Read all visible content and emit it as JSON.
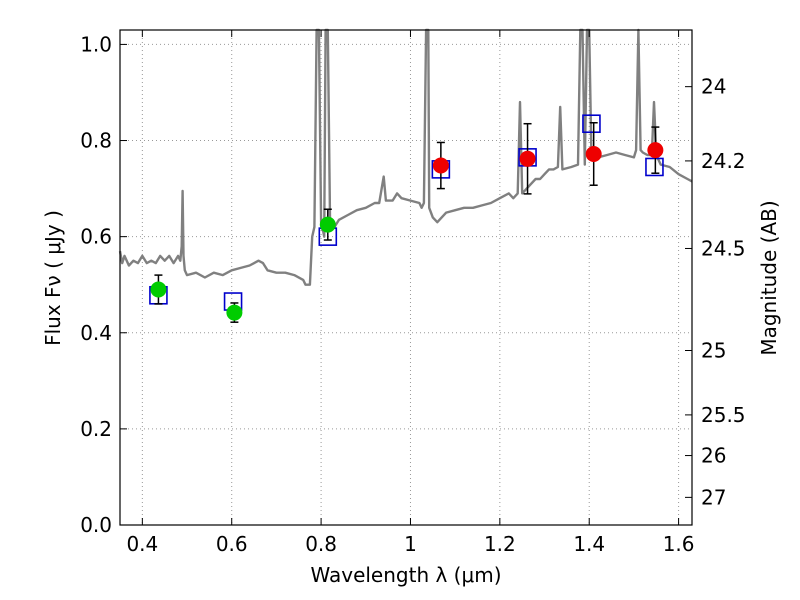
{
  "chart_data": {
    "type": "line",
    "xlabel": "Wavelength  λ (μm)",
    "ylabel": "Flux  Fν  ( μJy )",
    "ylabel_right": "Magnitude (AB)",
    "xlim": [
      0.35,
      1.63
    ],
    "ylim": [
      0.0,
      1.03
    ],
    "grid": true,
    "x_ticks": [
      0.4,
      0.6,
      0.8,
      1.0,
      1.2,
      1.4,
      1.6
    ],
    "x_tick_labels": [
      "0.4",
      "0.6",
      "0.8",
      "1",
      "1.2",
      "1.4",
      "1.6"
    ],
    "y_ticks": [
      0.0,
      0.2,
      0.4,
      0.6,
      0.8,
      1.0
    ],
    "y_tick_labels": [
      "0.0",
      "0.2",
      "0.4",
      "0.6",
      "0.8",
      "1.0"
    ],
    "right_ticks": [
      {
        "flux": 0.9121,
        "label": "24"
      },
      {
        "flux": 0.7576,
        "label": "24.2"
      },
      {
        "flux": 0.5754,
        "label": "24.5"
      },
      {
        "flux": 0.3631,
        "label": "25"
      },
      {
        "flux": 0.2291,
        "label": "25.5"
      },
      {
        "flux": 0.1445,
        "label": "26"
      },
      {
        "flux": 0.0575,
        "label": "27"
      }
    ],
    "colors": {
      "sed": "#808080",
      "model_box": "#0000cc",
      "green": "#00cc00",
      "red": "#ee0000",
      "errorbar": "#000000",
      "grid": "#999999"
    },
    "series": [
      {
        "kind": "line",
        "points": [
          [
            0.35,
            0.57
          ],
          [
            0.355,
            0.545
          ],
          [
            0.36,
            0.56
          ],
          [
            0.37,
            0.54
          ],
          [
            0.38,
            0.55
          ],
          [
            0.39,
            0.545
          ],
          [
            0.4,
            0.56
          ],
          [
            0.41,
            0.545
          ],
          [
            0.42,
            0.55
          ],
          [
            0.43,
            0.545
          ],
          [
            0.44,
            0.56
          ],
          [
            0.45,
            0.55
          ],
          [
            0.46,
            0.56
          ],
          [
            0.47,
            0.545
          ],
          [
            0.48,
            0.56
          ],
          [
            0.485,
            0.55
          ],
          [
            0.488,
            0.58
          ],
          [
            0.49,
            0.695
          ],
          [
            0.492,
            0.56
          ],
          [
            0.495,
            0.53
          ],
          [
            0.5,
            0.52
          ],
          [
            0.52,
            0.525
          ],
          [
            0.54,
            0.515
          ],
          [
            0.56,
            0.525
          ],
          [
            0.58,
            0.52
          ],
          [
            0.6,
            0.53
          ],
          [
            0.62,
            0.535
          ],
          [
            0.64,
            0.54
          ],
          [
            0.66,
            0.55
          ],
          [
            0.67,
            0.545
          ],
          [
            0.68,
            0.53
          ],
          [
            0.7,
            0.525
          ],
          [
            0.72,
            0.525
          ],
          [
            0.74,
            0.52
          ],
          [
            0.76,
            0.51
          ],
          [
            0.765,
            0.5
          ],
          [
            0.775,
            0.5
          ],
          [
            0.78,
            0.6
          ],
          [
            0.785,
            0.62
          ],
          [
            0.79,
            1.03
          ],
          [
            0.795,
            1.03
          ],
          [
            0.8,
            0.63
          ],
          [
            0.803,
            0.615
          ],
          [
            0.805,
            0.61
          ],
          [
            0.807,
            0.6
          ],
          [
            0.81,
            1.03
          ],
          [
            0.815,
            1.03
          ],
          [
            0.82,
            0.64
          ],
          [
            0.83,
            0.62
          ],
          [
            0.84,
            0.635
          ],
          [
            0.86,
            0.645
          ],
          [
            0.88,
            0.655
          ],
          [
            0.9,
            0.66
          ],
          [
            0.92,
            0.67
          ],
          [
            0.93,
            0.67
          ],
          [
            0.94,
            0.725
          ],
          [
            0.945,
            0.675
          ],
          [
            0.96,
            0.675
          ],
          [
            0.97,
            0.69
          ],
          [
            0.98,
            0.68
          ],
          [
            1.0,
            0.675
          ],
          [
            1.02,
            0.67
          ],
          [
            1.025,
            0.66
          ],
          [
            1.03,
            0.67
          ],
          [
            1.035,
            1.03
          ],
          [
            1.04,
            1.03
          ],
          [
            1.042,
            0.66
          ],
          [
            1.05,
            0.64
          ],
          [
            1.06,
            0.63
          ],
          [
            1.08,
            0.65
          ],
          [
            1.1,
            0.655
          ],
          [
            1.12,
            0.66
          ],
          [
            1.14,
            0.66
          ],
          [
            1.16,
            0.665
          ],
          [
            1.18,
            0.67
          ],
          [
            1.2,
            0.68
          ],
          [
            1.22,
            0.69
          ],
          [
            1.23,
            0.68
          ],
          [
            1.24,
            0.69
          ],
          [
            1.245,
            0.88
          ],
          [
            1.25,
            0.69
          ],
          [
            1.26,
            0.7
          ],
          [
            1.27,
            0.71
          ],
          [
            1.28,
            0.72
          ],
          [
            1.29,
            0.72
          ],
          [
            1.3,
            0.73
          ],
          [
            1.31,
            0.74
          ],
          [
            1.32,
            0.74
          ],
          [
            1.33,
            0.745
          ],
          [
            1.335,
            0.87
          ],
          [
            1.34,
            0.74
          ],
          [
            1.36,
            0.745
          ],
          [
            1.375,
            0.75
          ],
          [
            1.38,
            1.03
          ],
          [
            1.385,
            1.03
          ],
          [
            1.39,
            0.75
          ],
          [
            1.395,
            1.03
          ],
          [
            1.4,
            1.03
          ],
          [
            1.405,
            0.76
          ],
          [
            1.42,
            0.765
          ],
          [
            1.44,
            0.77
          ],
          [
            1.46,
            0.775
          ],
          [
            1.48,
            0.77
          ],
          [
            1.5,
            0.765
          ],
          [
            1.505,
            0.78
          ],
          [
            1.51,
            1.03
          ],
          [
            1.515,
            0.78
          ],
          [
            1.52,
            0.775
          ],
          [
            1.53,
            0.77
          ],
          [
            1.54,
            0.77
          ],
          [
            1.545,
            0.88
          ],
          [
            1.55,
            0.77
          ],
          [
            1.56,
            0.75
          ],
          [
            1.58,
            0.745
          ],
          [
            1.6,
            0.73
          ],
          [
            1.62,
            0.72
          ],
          [
            1.63,
            0.715
          ]
        ]
      },
      {
        "kind": "model_box",
        "x": [
          0.436,
          0.603,
          0.815,
          1.068,
          1.262,
          1.405,
          1.546
        ],
        "y": [
          0.478,
          0.465,
          0.6,
          0.74,
          0.765,
          0.835,
          0.745
        ]
      },
      {
        "kind": "points_green",
        "x": [
          0.436,
          0.606,
          0.815
        ],
        "y": [
          0.49,
          0.442,
          0.625
        ],
        "yerr": [
          0.03,
          0.02,
          0.032
        ]
      },
      {
        "kind": "points_red",
        "x": [
          1.068,
          1.262,
          1.41,
          1.548
        ],
        "y": [
          0.748,
          0.762,
          0.772,
          0.78
        ],
        "yerr": [
          0.048,
          0.073,
          0.065,
          0.048
        ]
      }
    ]
  }
}
